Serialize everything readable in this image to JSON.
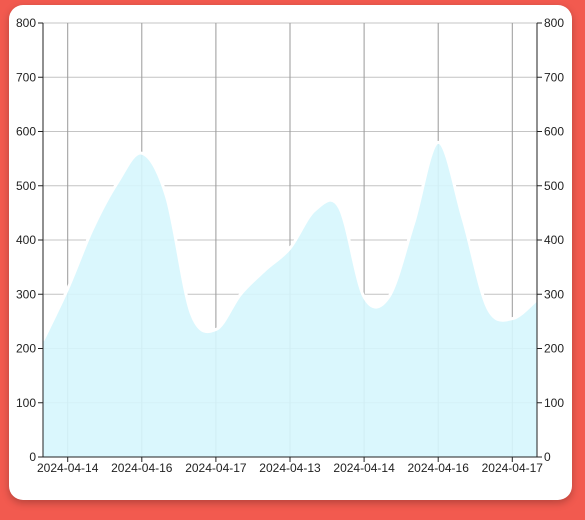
{
  "chart_data": {
    "type": "area",
    "title": "",
    "xlabel": "",
    "ylabel": "",
    "x": [
      "2024-04-14",
      "2024-04-16",
      "2024-04-17",
      "2024-04-13",
      "2024-04-14",
      "2024-04-16",
      "2024-04-17"
    ],
    "x_positions": [
      0.5,
      2,
      3.5,
      5,
      6.5,
      8,
      9.5
    ],
    "series": [
      {
        "x": [
          0,
          0.5,
          1,
          1.5,
          2,
          2.5,
          3,
          3.5,
          4,
          4.5,
          5,
          5.5,
          6,
          6.5,
          7,
          7.5,
          8,
          8.5,
          9,
          9.5,
          10
        ],
        "values": [
          215,
          310,
          420,
          505,
          560,
          480,
          265,
          235,
          300,
          345,
          385,
          455,
          460,
          295,
          295,
          430,
          580,
          440,
          275,
          255,
          290
        ]
      }
    ],
    "ylim": [
      0,
      800
    ],
    "y_ticks": [
      0,
      100,
      200,
      300,
      400,
      500,
      600,
      700,
      800
    ],
    "dual_y_axis": true,
    "grid": true,
    "fill_color": "#d6f6fd",
    "line_color": "#ffffff"
  }
}
